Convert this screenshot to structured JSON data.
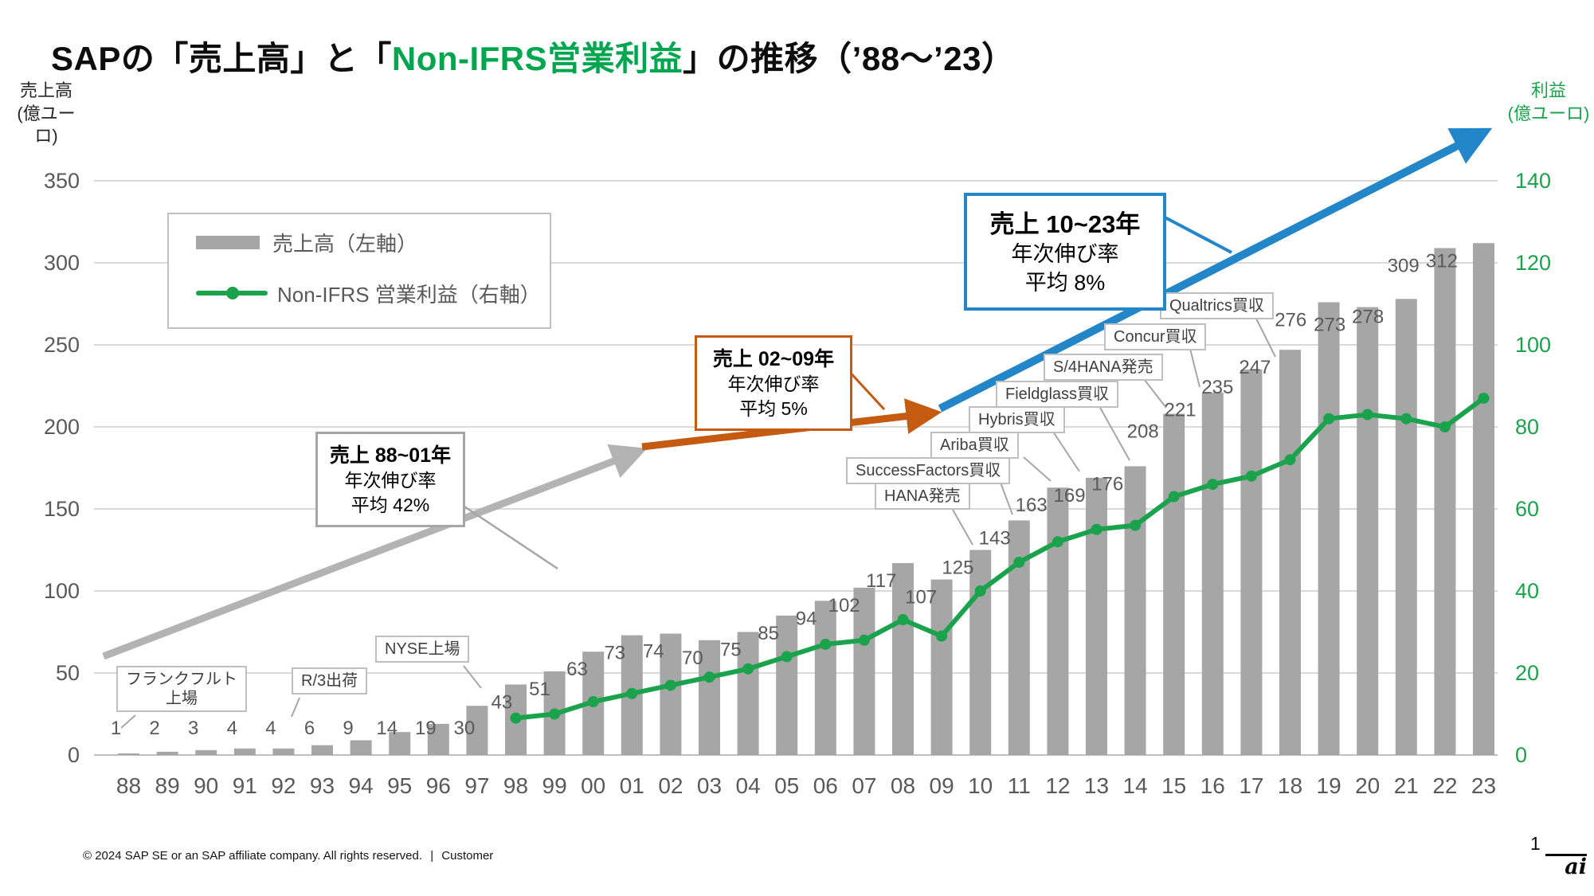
{
  "title": {
    "part1": "SAPの「売上高」と「",
    "part2_green": "Non-IFRS営業利益",
    "part3": "」の推移（’88～’23）"
  },
  "axes": {
    "left_title_line1": "売上高",
    "left_title_line2": "(億ユーロ)",
    "right_title_line1": "利益",
    "right_title_line2": "(億ユーロ)",
    "left_ticks": [
      0,
      50,
      100,
      150,
      200,
      250,
      300,
      350
    ],
    "right_ticks": [
      0,
      20,
      40,
      60,
      80,
      100,
      120,
      140
    ]
  },
  "legend": {
    "revenue_label": "売上高（左軸）",
    "profit_label": "Non-IFRS 営業利益（右軸）"
  },
  "chart_data": {
    "type": "bar+line combo",
    "categories": [
      "88",
      "89",
      "90",
      "91",
      "92",
      "93",
      "94",
      "95",
      "96",
      "97",
      "98",
      "99",
      "00",
      "01",
      "02",
      "03",
      "04",
      "05",
      "06",
      "07",
      "08",
      "09",
      "10",
      "11",
      "12",
      "13",
      "14",
      "15",
      "16",
      "17",
      "18",
      "19",
      "20",
      "21",
      "22",
      "23"
    ],
    "series": [
      {
        "name": "売上高（左軸）",
        "type": "bar",
        "axis": "left",
        "color": "#A6A6A6",
        "values": [
          1,
          2,
          3,
          4,
          4,
          6,
          9,
          14,
          19,
          30,
          43,
          51,
          63,
          73,
          74,
          70,
          75,
          85,
          94,
          102,
          117,
          107,
          125,
          143,
          163,
          169,
          176,
          208,
          221,
          235,
          247,
          276,
          273,
          278,
          309,
          312
        ]
      },
      {
        "name": "Non-IFRS 営業利益（右軸）",
        "type": "line",
        "axis": "right",
        "color": "#1BA24C",
        "start_category": "98",
        "start_index": 10,
        "values": [
          9,
          10,
          13,
          15,
          17,
          19,
          21,
          24,
          27,
          28,
          33,
          29,
          40,
          47,
          52,
          55,
          56,
          63,
          66,
          68,
          72,
          82,
          83,
          82,
          80,
          87
        ]
      }
    ],
    "ylim_left": [
      0,
      350
    ],
    "ylim_right": [
      0,
      140
    ],
    "grid": "horizontal",
    "legend_position": "upper-left-inside"
  },
  "annotations": {
    "growth_boxes": [
      {
        "id": "gray",
        "line1": "売上 88~01年",
        "line2": "年次伸び率",
        "line3": "平均 42%"
      },
      {
        "id": "orange",
        "line1": "売上 02~09年",
        "line2": "年次伸び率",
        "line3": "平均 5%"
      },
      {
        "id": "blue",
        "line1": "売上 10~23年",
        "line2": "年次伸び率",
        "line3": "平均 8%"
      }
    ],
    "event_labels": [
      {
        "lines": [
          "HANA発売"
        ],
        "year": "10"
      },
      {
        "lines": [
          "SuccessFactors買収"
        ],
        "year": "11"
      },
      {
        "lines": [
          "Ariba買収"
        ],
        "year": "12"
      },
      {
        "lines": [
          "Hybris買収"
        ],
        "year": "13"
      },
      {
        "lines": [
          "Fieldglass買収"
        ],
        "year": "14"
      },
      {
        "lines": [
          "S/4HANA発売"
        ],
        "year": "15"
      },
      {
        "lines": [
          "Concur買収"
        ],
        "year": "16"
      },
      {
        "lines": [
          "Qualtrics買収"
        ],
        "year": "18"
      }
    ],
    "milestone_labels": [
      {
        "lines": [
          "フランクフルト",
          "上場"
        ],
        "year": "88"
      },
      {
        "lines": [
          "R/3出荷"
        ],
        "year": "93"
      },
      {
        "lines": [
          "NYSE上場"
        ],
        "year": "98"
      }
    ]
  },
  "footer": {
    "copyright": "© 2024 SAP SE or an SAP affiliate company. All rights reserved.",
    "separator": "|",
    "classification": "Customer",
    "page_number": "1",
    "logo_text": "ai"
  },
  "colors": {
    "bar": "#A6A6A6",
    "line_green": "#1BA24C",
    "title_green": "#00A64F",
    "blue": "#2386C8",
    "orange": "#C55A11",
    "gray_arrow": "#B3B3B3",
    "gridline": "#D9D9D9",
    "baseline": "#BFBFBF",
    "axis_text": "#595959"
  }
}
